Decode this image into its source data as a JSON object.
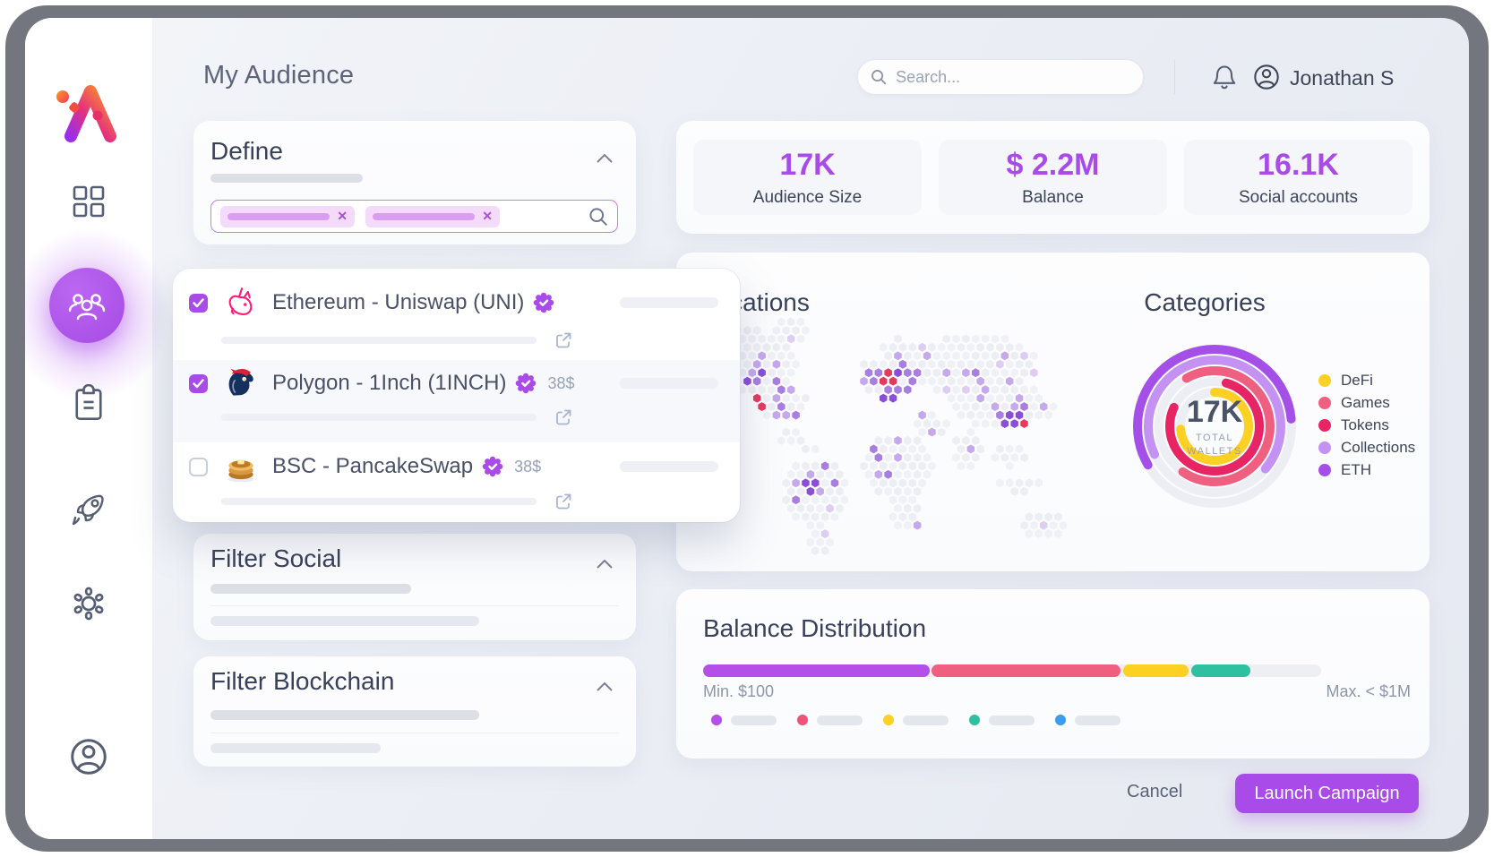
{
  "ui_colors": {
    "accent": "#a84be8",
    "stat_value": "#a643ea"
  },
  "header": {
    "title": "My Audience",
    "search_placeholder": "Search...",
    "user_name": "Jonathan S"
  },
  "sidebar": {
    "logo": "brand-a-logo",
    "items": [
      "grid-icon",
      "users-icon",
      "clipboard-icon",
      "rocket-icon",
      "gear-icon"
    ],
    "footer_icon": "profile-icon",
    "active_item": "users-icon"
  },
  "define": {
    "title": "Define",
    "chip_count": 2
  },
  "token_dropdown": {
    "items": [
      {
        "checked": true,
        "logo": "uniswap-logo",
        "label": "Ethereum - Uniswap (UNI)",
        "verified": true,
        "price": ""
      },
      {
        "checked": true,
        "logo": "1inch-logo",
        "label": "Polygon - 1Inch (1INCH)",
        "verified": true,
        "price": "38$"
      },
      {
        "checked": false,
        "logo": "pancakeswap-logo",
        "label": "BSC - PancakeSwap",
        "verified": true,
        "price": "38$"
      }
    ]
  },
  "filter_social": {
    "title": "Filter Social"
  },
  "filter_blockchain": {
    "title": "Filter Blockchain"
  },
  "stats": {
    "items": [
      {
        "value": "17K",
        "label": "Audience Size"
      },
      {
        "value": "$ 2.2M",
        "label": "Balance"
      },
      {
        "value": "16.1K",
        "label": "Social accounts"
      }
    ]
  },
  "locations": {
    "title": "Locations"
  },
  "map": {
    "base": "#f0f1f6",
    "base2": "#eceef3",
    "hotspot": "#e8395c",
    "purple_shades": [
      "#ddcdf2",
      "#c5a9ec",
      "#a87fe0",
      "#8a4fd6",
      "#7730cf"
    ]
  },
  "chart_data": [
    {
      "type": "donut",
      "title": "Categories",
      "center_value": "17K",
      "center_label_line1": "TOTAL",
      "center_label_line2": "WALLETS",
      "legend_position": "right",
      "track_color": "#eceef4",
      "ring_radii": [
        38,
        50,
        62,
        74,
        86
      ],
      "series": [
        {
          "name": "DeFi",
          "color": "#fdd024",
          "ring": 1,
          "start_deg": -90,
          "sweep_deg": 265
        },
        {
          "name": "Games",
          "color": "#ee5f80",
          "ring": 3,
          "start_deg": -120,
          "sweep_deg": 245
        },
        {
          "name": "Tokens",
          "color": "#e72565",
          "ring": 2,
          "start_deg": -75,
          "sweep_deg": 280
        },
        {
          "name": "Collections",
          "color": "#c392f2",
          "ring": 4,
          "start_deg": 155,
          "sweep_deg": 245
        },
        {
          "name": "ETH",
          "color": "#a34fe8",
          "ring": 5,
          "start_deg": 150,
          "sweep_deg": 205
        }
      ]
    },
    {
      "type": "stacked-bar",
      "title": "Balance Distribution",
      "min_label": "Min. $100",
      "max_label": "Max. < $1M",
      "track_color": "#edeff3",
      "segments": [
        {
          "name": "tier-1",
          "color": "#b44fe8",
          "pct": 37
        },
        {
          "name": "tier-2",
          "color": "#ee5f80",
          "pct": 31
        },
        {
          "name": "tier-3",
          "color": "#fdd024",
          "pct": 11
        },
        {
          "name": "tier-4",
          "color": "#2fc0a2",
          "pct": 10
        }
      ],
      "legend_dot_colors": [
        "#b44fe8",
        "#ee5377",
        "#fdd024",
        "#2fc0a2",
        "#3d9bf0"
      ]
    }
  ],
  "footer": {
    "cancel_label": "Cancel",
    "launch_label": "Launch Campaign"
  }
}
